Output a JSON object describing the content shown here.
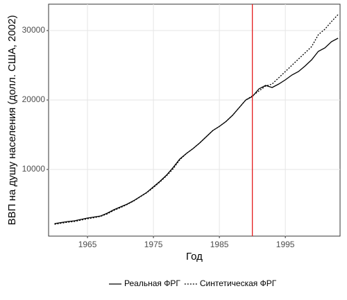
{
  "chart_data": {
    "type": "line",
    "x_label": "Год",
    "y_label": "ВВП на душу населения (долл. США, 2002)",
    "x": [
      1960,
      1961,
      1962,
      1963,
      1964,
      1965,
      1966,
      1967,
      1968,
      1969,
      1970,
      1971,
      1972,
      1973,
      1974,
      1975,
      1976,
      1977,
      1978,
      1979,
      1980,
      1981,
      1982,
      1983,
      1984,
      1985,
      1986,
      1987,
      1988,
      1989,
      1990,
      1991,
      1992,
      1993,
      1994,
      1995,
      1996,
      1997,
      1998,
      1999,
      2000,
      2001,
      2002,
      2003
    ],
    "series": [
      {
        "name": "Реальная ФРГ",
        "color": "#000000",
        "dash": "solid",
        "values": [
          2200,
          2350,
          2500,
          2600,
          2800,
          3000,
          3150,
          3300,
          3700,
          4200,
          4600,
          5000,
          5500,
          6100,
          6700,
          7500,
          8300,
          9200,
          10300,
          11500,
          12300,
          13000,
          13800,
          14700,
          15600,
          16200,
          16900,
          17800,
          18900,
          20000,
          20500,
          21600,
          22100,
          21800,
          22300,
          22900,
          23600,
          24100,
          24900,
          25800,
          27000,
          27500,
          28400,
          28900
        ]
      },
      {
        "name": "Синтетическая ФРГ",
        "color": "#000000",
        "dash": "dotted",
        "values": [
          2100,
          2250,
          2400,
          2500,
          2700,
          2900,
          3050,
          3250,
          3600,
          4100,
          4500,
          4950,
          5450,
          6050,
          6650,
          7400,
          8200,
          9100,
          10100,
          11400,
          12300,
          13000,
          13800,
          14700,
          15600,
          16200,
          16900,
          17800,
          18900,
          20000,
          20600,
          21300,
          22000,
          22300,
          23200,
          24100,
          25000,
          25900,
          26800,
          27700,
          29400,
          30200,
          31300,
          32300
        ]
      }
    ],
    "vline": {
      "value": 1990,
      "color": "#e41a1c"
    },
    "xlim": [
      1959.1,
      2003.3
    ],
    "xticks": [
      1965,
      1975,
      1985,
      1995
    ],
    "ylim": [
      400,
      33800
    ],
    "yticks": [
      10000,
      20000,
      30000
    ],
    "grid": true,
    "legend": "bottom"
  }
}
